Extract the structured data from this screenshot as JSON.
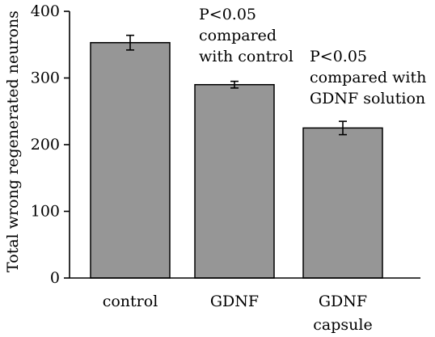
{
  "chart_data": {
    "type": "bar",
    "categories": [
      "control",
      "GDNF",
      "GDNF capsule"
    ],
    "category_label_lines": [
      [
        "control"
      ],
      [
        "GDNF"
      ],
      [
        "GDNF",
        "capsule"
      ]
    ],
    "values": [
      353,
      290,
      225
    ],
    "errors": [
      11,
      5,
      10
    ],
    "ylabel": "Total wrong regenerated neurons",
    "xlabel": "",
    "ylim": [
      0,
      400
    ],
    "yticks": [
      0,
      100,
      200,
      300,
      400
    ],
    "bar_color": "#969696",
    "grid": false,
    "annotations": [
      {
        "category": "GDNF",
        "lines": [
          "P<0.05",
          "compared",
          "with control"
        ]
      },
      {
        "category": "GDNF capsule",
        "lines": [
          "P<0.05",
          "compared with",
          "GDNF solution"
        ]
      }
    ]
  }
}
